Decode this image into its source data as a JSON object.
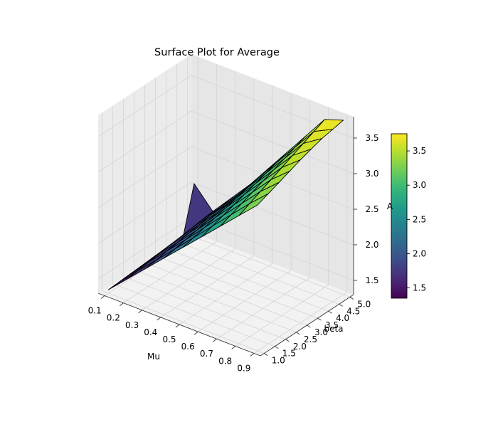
{
  "chart_data": {
    "type": "surface",
    "title": "Surface Plot for Average",
    "xlabel": "Mu",
    "ylabel": "beta",
    "zlabel": "A",
    "x": [
      0.1,
      0.2,
      0.3,
      0.4,
      0.5,
      0.6,
      0.7,
      0.8,
      0.9
    ],
    "y": [
      1.0,
      1.5,
      2.0,
      2.5,
      3.0,
      3.5,
      4.0,
      4.5,
      5.0
    ],
    "x_ticks": [
      "0.1",
      "0.2",
      "0.3",
      "0.4",
      "0.5",
      "0.6",
      "0.7",
      "0.8",
      "0.9"
    ],
    "y_ticks": [
      "1.0",
      "1.5",
      "2.0",
      "2.5",
      "3.0",
      "3.5",
      "4.0",
      "4.5",
      "5.0"
    ],
    "z_ticks": [
      "1.5",
      "2.0",
      "2.5",
      "3.0",
      "3.5"
    ],
    "z_tick_values": [
      1.5,
      2.0,
      2.5,
      3.0,
      3.5
    ],
    "colorbar_ticks": [
      "1.5",
      "2.0",
      "2.5",
      "3.0",
      "3.5"
    ],
    "colorbar_tick_values": [
      1.5,
      2.0,
      2.5,
      3.0,
      3.5
    ],
    "zlim": [
      1.3,
      3.8
    ],
    "colorbar_range": [
      1.35,
      3.75
    ],
    "colormap": "viridis",
    "edge_color": "#000000",
    "z": [
      [
        1.35,
        1.36,
        1.37,
        1.38,
        1.39,
        1.4,
        1.41,
        1.42,
        2.05
      ],
      [
        1.6,
        1.62,
        1.64,
        1.66,
        1.68,
        1.7,
        1.72,
        1.74,
        1.76
      ],
      [
        1.85,
        1.87,
        1.9,
        1.92,
        1.95,
        1.97,
        2.0,
        2.02,
        2.05
      ],
      [
        2.1,
        2.13,
        2.16,
        2.19,
        2.22,
        2.25,
        2.28,
        2.31,
        2.34
      ],
      [
        2.35,
        2.39,
        2.43,
        2.47,
        2.51,
        2.55,
        2.59,
        2.63,
        2.67
      ],
      [
        2.6,
        2.65,
        2.7,
        2.75,
        2.8,
        2.85,
        2.9,
        2.95,
        3.0
      ],
      [
        2.85,
        2.91,
        2.97,
        3.03,
        3.09,
        3.15,
        3.21,
        3.27,
        3.33
      ],
      [
        3.1,
        3.17,
        3.24,
        3.31,
        3.38,
        3.45,
        3.52,
        3.59,
        3.66
      ],
      [
        3.35,
        3.41,
        3.47,
        3.53,
        3.59,
        3.64,
        3.69,
        3.72,
        3.75
      ]
    ]
  }
}
